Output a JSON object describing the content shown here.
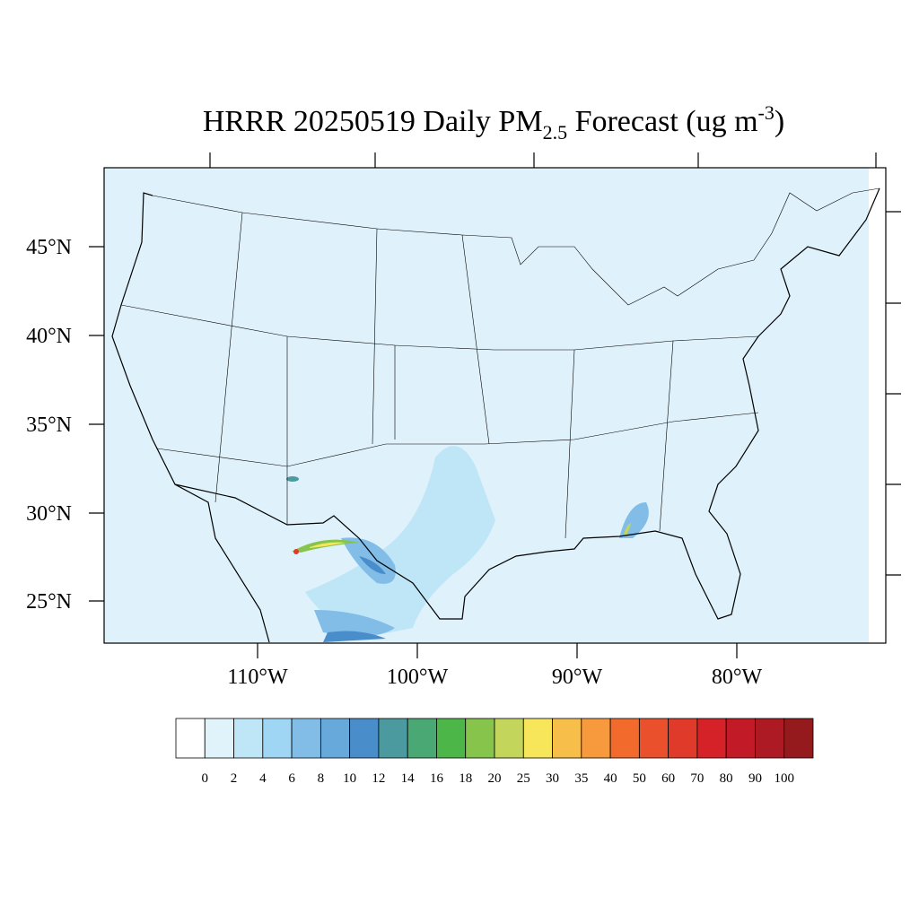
{
  "title": {
    "main": "HRRR 20250519 Daily PM",
    "sub": "2.5",
    "after": " Forecast (ug m",
    "sup": "-3",
    "end": ")"
  },
  "lat_labels": [
    "45°N",
    "40°N",
    "35°N",
    "30°N",
    "25°N"
  ],
  "lon_labels": [
    "110°W",
    "100°W",
    "90°W",
    "80°W"
  ],
  "legend": {
    "levels": [
      0,
      2,
      4,
      6,
      8,
      10,
      12,
      14,
      16,
      18,
      20,
      25,
      30,
      35,
      40,
      50,
      60,
      70,
      80,
      90,
      100
    ],
    "colors": [
      "#ffffff",
      "#e0f3fa",
      "#bfe6f6",
      "#9fd6f3",
      "#82bde8",
      "#68a9dc",
      "#4a8dcb",
      "#4a9a9f",
      "#4aa874",
      "#4cb648",
      "#86c44c",
      "#c3d55a",
      "#f7e55a",
      "#f8be4a",
      "#f79a3e",
      "#f26b2d",
      "#ea502c",
      "#e03a2a",
      "#d52229",
      "#c21b27",
      "#ae1a23",
      "#951a1e"
    ]
  }
}
